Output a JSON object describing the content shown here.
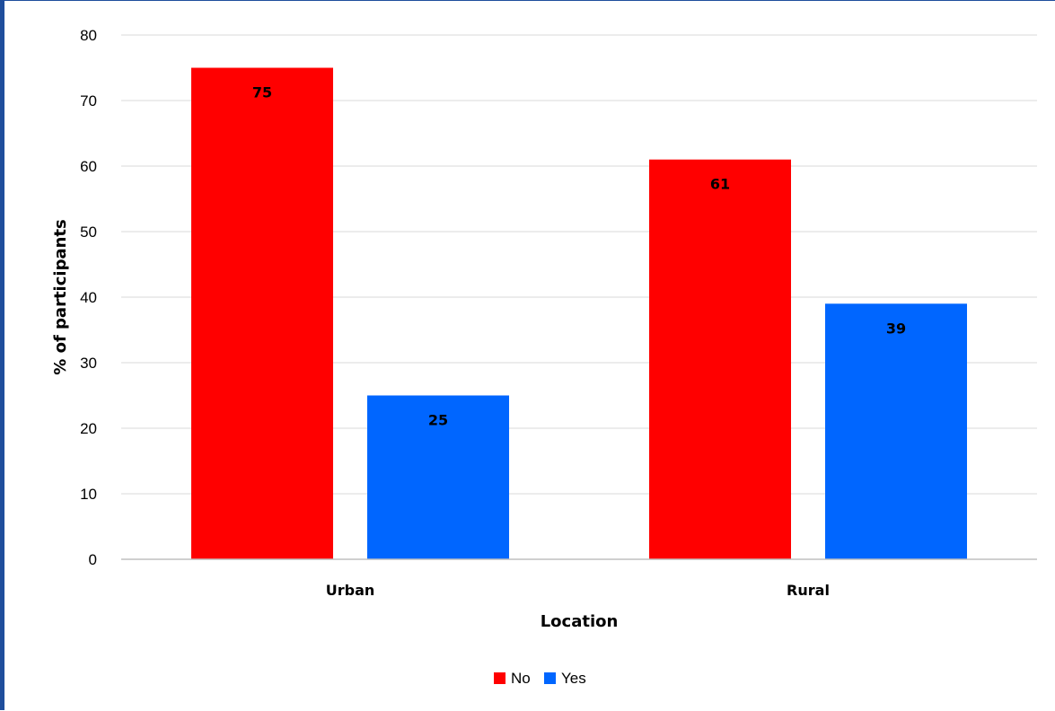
{
  "chart_data": {
    "type": "bar",
    "categories": [
      "Urban",
      "Rural"
    ],
    "series": [
      {
        "name": "No",
        "values": [
          75,
          61
        ],
        "color": "#ff0000"
      },
      {
        "name": "Yes",
        "values": [
          25,
          39
        ],
        "color": "#0066ff"
      }
    ],
    "xlabel": "Location",
    "ylabel": "% of participants",
    "ylim": [
      0,
      80
    ],
    "yticks": [
      0,
      10,
      20,
      30,
      40,
      50,
      60,
      70,
      80
    ],
    "grid": true,
    "legend_position": "bottom"
  }
}
